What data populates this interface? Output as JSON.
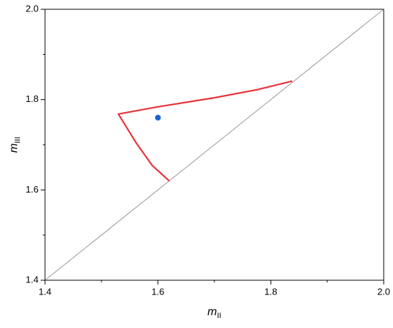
{
  "chart_data": {
    "type": "scatter",
    "xlabel": "m",
    "xlabel_subscript": "II",
    "ylabel": "m",
    "ylabel_subscript": "III",
    "xlim": [
      1.4,
      2.0
    ],
    "ylim": [
      1.4,
      2.0
    ],
    "xticks": [
      1.4,
      1.6,
      1.8,
      {
        "value": 2.0,
        "label": "2.0"
      }
    ],
    "yticks": [
      1.4,
      1.6,
      1.8,
      {
        "value": 2.0,
        "label": "2.0"
      }
    ],
    "xminor": [
      1.5,
      1.7,
      1.9
    ],
    "yminor": [
      1.5,
      1.7,
      1.9
    ],
    "series": [
      {
        "mode": "line",
        "color": "#808080",
        "width": 0.8,
        "x": [
          1.4,
          2.0
        ],
        "values": [
          1.4,
          2.0
        ]
      },
      {
        "mode": "line",
        "color": "#e8333a",
        "width": 2.2,
        "x": [
          1.62,
          1.59,
          1.561,
          1.53,
          1.6,
          1.7,
          1.776,
          1.838
        ],
        "values": [
          1.62,
          1.654,
          1.705,
          1.768,
          1.784,
          1.804,
          1.822,
          1.841
        ]
      },
      {
        "mode": "marker",
        "color": "#1565d8",
        "x": [
          1.6
        ],
        "values": [
          1.76
        ]
      }
    ]
  }
}
